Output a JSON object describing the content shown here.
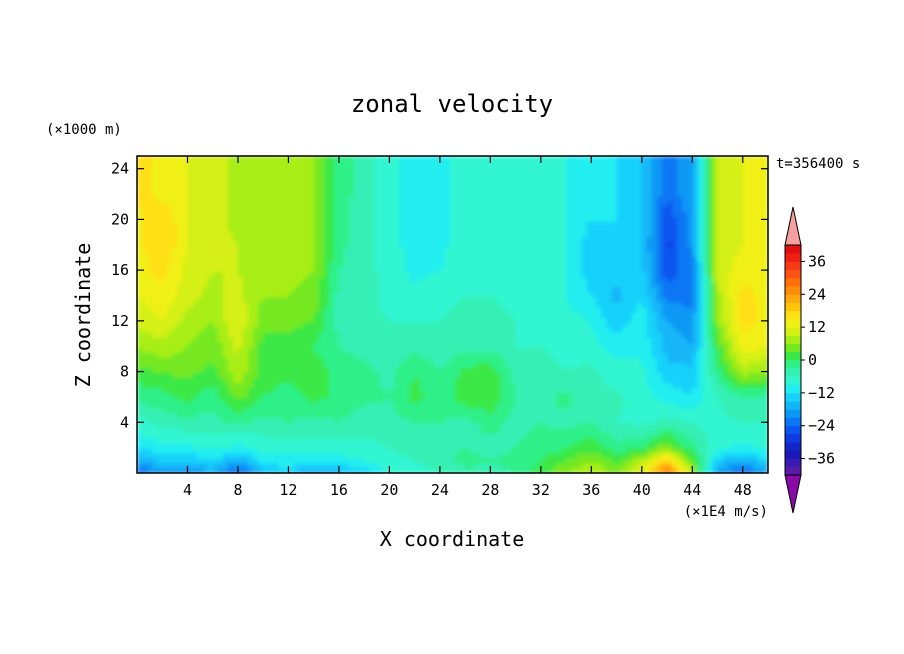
{
  "chart_data": {
    "type": "heatmap",
    "title": "zonal velocity",
    "xlabel": "X coordinate",
    "ylabel": "Z coordinate",
    "x_unit": "(×1E4 m/s)",
    "y_unit": "(×1000 m)",
    "time_label": "t=356400 s",
    "xlim": [
      0,
      50
    ],
    "ylim": [
      0,
      25
    ],
    "x_ticks": [
      4,
      8,
      12,
      16,
      20,
      24,
      28,
      32,
      36,
      40,
      44,
      48
    ],
    "y_ticks": [
      4,
      8,
      12,
      16,
      20,
      24
    ],
    "colorbar": {
      "levels": [
        -42,
        -39,
        -36,
        -33,
        -30,
        -27,
        -24,
        -21,
        -18,
        -15,
        -12,
        -9,
        -6,
        -3,
        0,
        3,
        6,
        9,
        12,
        15,
        18,
        21,
        24,
        27,
        30,
        33,
        36,
        39,
        42
      ],
      "colors": [
        "#5a1aa8",
        "#3a1ab0",
        "#1a1ab8",
        "#1426c8",
        "#0f3ae0",
        "#0a54f0",
        "#0a76f5",
        "#0a98f5",
        "#12b6f8",
        "#18d2fb",
        "#20eef0",
        "#30f5d2",
        "#34f0b4",
        "#2ef088",
        "#3ae845",
        "#74e820",
        "#a8ee14",
        "#d4f014",
        "#f0f014",
        "#ffe014",
        "#ffc40a",
        "#ffa80a",
        "#ff8c0a",
        "#ff700a",
        "#ff5414",
        "#f83a14",
        "#f01e14",
        "#e01010"
      ],
      "under_color": "#8a0aa8",
      "over_color": "#f4a0a0",
      "tick_labels": [
        -36,
        -24,
        -12,
        0,
        12,
        24,
        36
      ]
    },
    "field": {
      "description_x_values": [
        0,
        2,
        4,
        6,
        8,
        10,
        12,
        14,
        16,
        18,
        20,
        22,
        24,
        26,
        28,
        30,
        32,
        34,
        36,
        38,
        40,
        42,
        44,
        46,
        48,
        50
      ],
      "z_values": [
        0,
        1,
        2,
        4,
        6,
        8,
        10,
        12,
        14,
        16,
        18,
        20,
        22,
        25
      ],
      "u": [
        [
          -24,
          -20,
          -22,
          -18,
          -26,
          -16,
          -14,
          -18,
          -16,
          -14,
          -8,
          -8,
          -6,
          -4,
          -4,
          -3,
          2,
          6,
          10,
          4,
          14,
          30,
          8,
          -20,
          -24,
          -18
        ],
        [
          -18,
          -14,
          -15,
          -12,
          -18,
          -10,
          -10,
          -12,
          -10,
          -9,
          -7,
          -6,
          -4,
          -2,
          -3,
          -2,
          0,
          3,
          6,
          2,
          8,
          18,
          4,
          -14,
          -18,
          -12
        ],
        [
          -12,
          -10,
          -10,
          -8,
          -10,
          -8,
          -8,
          -8,
          -8,
          -7,
          -6,
          -5,
          -5,
          -3,
          -4,
          -3,
          -2,
          0,
          2,
          -2,
          0,
          6,
          -2,
          -8,
          -10,
          -8
        ],
        [
          -7,
          -5,
          -4,
          -4,
          -2,
          -4,
          -3,
          -4,
          -3,
          -5,
          -4,
          -3,
          -3,
          -4,
          -2,
          -4,
          -3,
          -4,
          -3,
          -6,
          -7,
          -5,
          -6,
          -7,
          -6,
          -6
        ],
        [
          -2,
          -1,
          1,
          -2,
          4,
          0,
          -2,
          1,
          -1,
          -2,
          -3,
          1,
          -2,
          2,
          3,
          -3,
          -4,
          -2,
          -6,
          -5,
          -8,
          -10,
          -12,
          -6,
          -3,
          -4
        ],
        [
          2,
          3,
          4,
          2,
          8,
          2,
          1,
          2,
          -1,
          -2,
          -4,
          0,
          -3,
          1,
          2,
          -4,
          -5,
          -6,
          -5,
          -8,
          -8,
          -14,
          -14,
          -2,
          8,
          6
        ],
        [
          6,
          8,
          6,
          4,
          10,
          2,
          2,
          0,
          -3,
          -4,
          -5,
          -4,
          -5,
          -4,
          -4,
          -6,
          -6,
          -7,
          -8,
          -10,
          -10,
          -16,
          -18,
          2,
          14,
          12
        ],
        [
          10,
          12,
          8,
          6,
          12,
          4,
          4,
          3,
          -4,
          -5,
          -6,
          -6,
          -6,
          -5,
          -5,
          -6,
          -7,
          -8,
          -9,
          -14,
          -10,
          -18,
          -20,
          6,
          16,
          14
        ],
        [
          12,
          14,
          10,
          8,
          10,
          6,
          6,
          5,
          -4,
          -5,
          -7,
          -8,
          -7,
          -6,
          -6,
          -7,
          -8,
          -9,
          -12,
          -16,
          -12,
          -22,
          -22,
          8,
          16,
          14
        ],
        [
          14,
          16,
          11,
          9,
          9,
          7,
          7,
          6,
          -3,
          -5,
          -7,
          -10,
          -9,
          -7,
          -6,
          -7,
          -8,
          -9,
          -14,
          -14,
          -14,
          -26,
          -22,
          10,
          14,
          14
        ],
        [
          14,
          18,
          12,
          10,
          9,
          7,
          7,
          6,
          -2,
          -5,
          -8,
          -10,
          -10,
          -7,
          -6,
          -7,
          -8,
          -9,
          -14,
          -12,
          -14,
          -28,
          -20,
          10,
          12,
          14
        ],
        [
          14,
          18,
          12,
          10,
          8,
          7,
          7,
          6,
          -2,
          -5,
          -8,
          -11,
          -10,
          -7,
          -6,
          -7,
          -8,
          -9,
          -12,
          -12,
          -14,
          -26,
          -20,
          10,
          12,
          14
        ],
        [
          16,
          14,
          12,
          10,
          8,
          6,
          6,
          6,
          -1,
          -5,
          -8,
          -11,
          -10,
          -7,
          -6,
          -7,
          -8,
          -9,
          -12,
          -12,
          -14,
          -24,
          -18,
          10,
          12,
          14
        ],
        [
          16,
          14,
          12,
          10,
          8,
          6,
          6,
          6,
          -1,
          -5,
          -8,
          -11,
          -10,
          -7,
          -6,
          -7,
          -8,
          -9,
          -12,
          -12,
          -14,
          -24,
          -18,
          10,
          12,
          14
        ]
      ]
    }
  }
}
